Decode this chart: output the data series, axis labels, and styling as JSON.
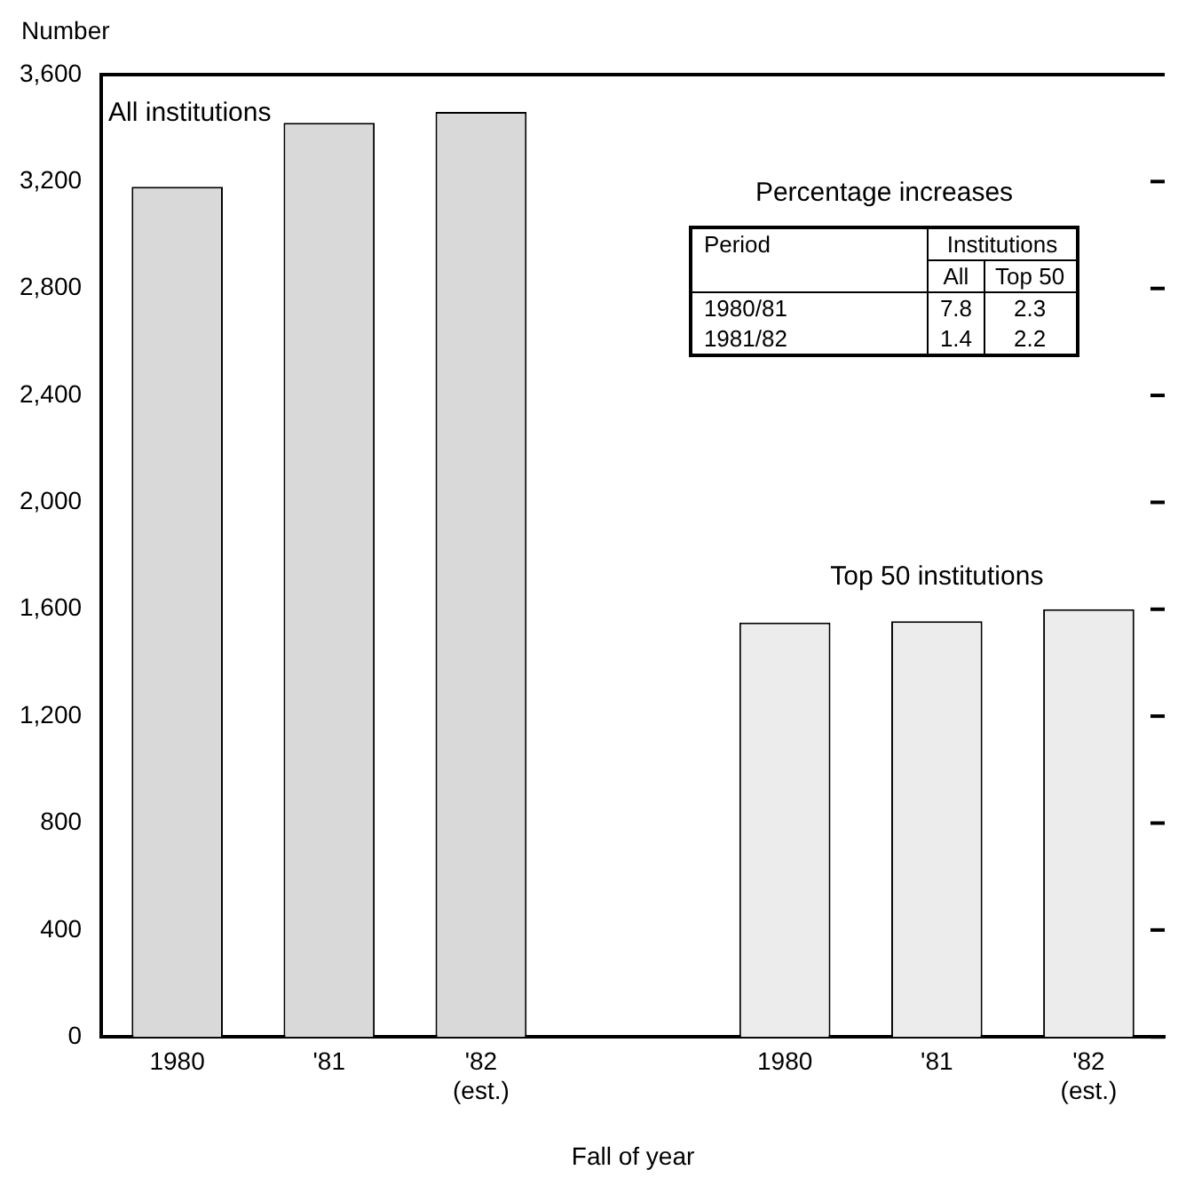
{
  "chart_data": {
    "type": "bar",
    "ylabel": "Number",
    "xlabel": "Fall of year",
    "categories": [
      "1980",
      "'81",
      "'82\n(est.)",
      null,
      "1980",
      "'81",
      "'82\n(est.)"
    ],
    "series": [
      {
        "name": "All institutions",
        "color": "#d9d9d9",
        "values": [
          3180,
          3420,
          3460,
          null,
          null,
          null,
          null
        ]
      },
      {
        "name": "Top 50 institutions",
        "color": "#ececec",
        "values": [
          null,
          null,
          null,
          null,
          1550,
          1555,
          1600
        ]
      }
    ],
    "ylim": [
      0,
      3600
    ],
    "yticks": [
      {
        "value": 0,
        "label": "0"
      },
      {
        "value": 400,
        "label": "400"
      },
      {
        "value": 800,
        "label": "800"
      },
      {
        "value": 1200,
        "label": "1,200"
      },
      {
        "value": 1600,
        "label": "1,600"
      },
      {
        "value": 2000,
        "label": "2,000"
      },
      {
        "value": 2400,
        "label": "2,400"
      },
      {
        "value": 2800,
        "label": "2,800"
      },
      {
        "value": 3200,
        "label": "3,200"
      },
      {
        "value": 3600,
        "label": "3,600"
      }
    ],
    "annotations": [
      "Percentage increases",
      "Period",
      "Institutions",
      "All",
      "Top 50",
      "1980/81",
      "7.8",
      "2.3",
      "1981/82",
      "1.4",
      "2.2"
    ],
    "grid": false,
    "legend": false
  }
}
